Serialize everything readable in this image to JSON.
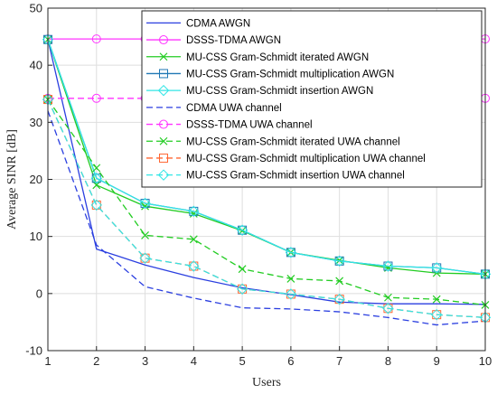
{
  "chart_data": {
    "type": "line",
    "xlabel": "Users",
    "ylabel": "Average SINR [dB]",
    "xlim": [
      1,
      10
    ],
    "ylim": [
      -10,
      50
    ],
    "x_ticks": [
      1,
      2,
      3,
      4,
      5,
      6,
      7,
      8,
      9,
      10
    ],
    "y_ticks": [
      -10,
      0,
      10,
      20,
      30,
      40,
      50
    ],
    "grid": true,
    "legend_position": "top-right",
    "x": [
      1,
      2,
      3,
      4,
      5,
      6,
      7,
      8,
      9,
      10
    ],
    "series": [
      {
        "name": "CDMA AWGN",
        "color": "#2b3fe0",
        "dash": "solid",
        "marker": "none",
        "values": [
          44.5,
          7.8,
          5.0,
          2.8,
          1.0,
          -0.2,
          -1.5,
          -1.8,
          -1.8,
          -1.9
        ]
      },
      {
        "name": "DSSS-TDMA AWGN",
        "color": "#ff33ff",
        "dash": "solid",
        "marker": "circle",
        "values": [
          44.6,
          44.6,
          44.6,
          44.6,
          44.6,
          44.6,
          44.6,
          44.6,
          44.6,
          44.6
        ]
      },
      {
        "name": "MU-CSS Gram-Schmidt iterated AWGN",
        "color": "#22cc22",
        "dash": "solid",
        "marker": "x",
        "values": [
          44.5,
          19.0,
          15.3,
          14.0,
          11.0,
          7.2,
          5.8,
          4.5,
          3.6,
          3.4
        ]
      },
      {
        "name": "MU-CSS Gram-Schmidt multiplication AWGN",
        "color": "#1f77b4",
        "dash": "solid",
        "marker": "square",
        "values": [
          44.5,
          20.2,
          15.8,
          14.4,
          11.1,
          7.2,
          5.7,
          4.8,
          4.5,
          3.4
        ]
      },
      {
        "name": "MU-CSS Gram-Schmidt insertion AWGN",
        "color": "#33e6e6",
        "dash": "solid",
        "marker": "diamond",
        "values": [
          44.5,
          20.2,
          15.8,
          14.4,
          11.1,
          7.2,
          5.7,
          4.8,
          4.5,
          3.4
        ]
      },
      {
        "name": "CDMA UWA channel",
        "color": "#2b3fe0",
        "dash": "dashed",
        "marker": "none",
        "values": [
          32.0,
          8.5,
          1.2,
          -0.8,
          -2.5,
          -2.7,
          -3.2,
          -4.2,
          -5.5,
          -4.8
        ]
      },
      {
        "name": "DSSS-TDMA UWA channel",
        "color": "#ff33ff",
        "dash": "dashed",
        "marker": "circle",
        "values": [
          34.2,
          34.2,
          34.2,
          34.2,
          34.2,
          34.2,
          34.2,
          34.2,
          34.2,
          34.2
        ]
      },
      {
        "name": "MU-CSS Gram-Schmidt iterated UWA channel",
        "color": "#22cc22",
        "dash": "dashed",
        "marker": "x",
        "values": [
          34.0,
          22.0,
          10.2,
          9.5,
          4.3,
          2.6,
          2.2,
          -0.7,
          -1.0,
          -2.0
        ]
      },
      {
        "name": "MU-CSS Gram-Schmidt multiplication UWA channel",
        "color": "#ff6633",
        "dash": "dashed",
        "marker": "square",
        "values": [
          34.0,
          15.5,
          6.2,
          4.8,
          0.8,
          -0.1,
          -1.0,
          -2.6,
          -3.7,
          -4.2
        ]
      },
      {
        "name": "MU-CSS Gram-Schmidt insertion UWA channel",
        "color": "#33e6e6",
        "dash": "dashed",
        "marker": "diamond",
        "values": [
          34.0,
          15.5,
          6.2,
          4.8,
          0.8,
          -0.1,
          -1.0,
          -2.6,
          -3.7,
          -4.2
        ]
      }
    ]
  }
}
